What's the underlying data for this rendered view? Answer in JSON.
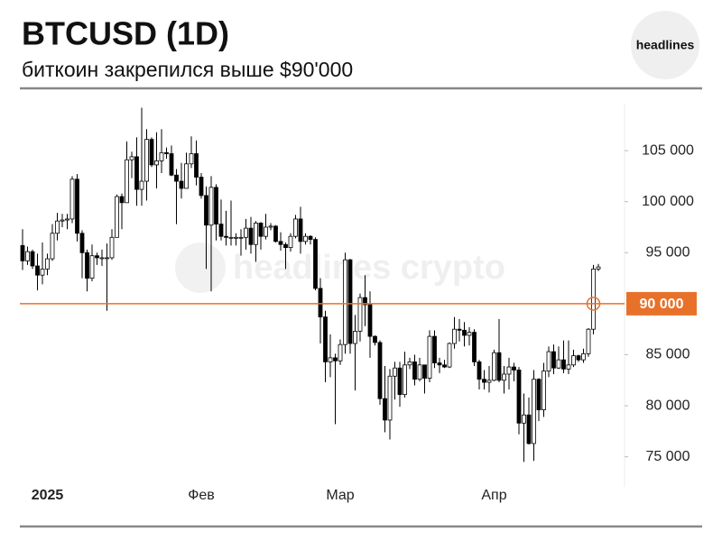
{
  "header": {
    "title": "BTCUSD (1D)",
    "subtitle": "биткоин закрепился выше $90'000",
    "logo": "headlines"
  },
  "watermark": "headlines crypto",
  "chart_data": {
    "type": "candlestick",
    "categories": [
      null,
      null,
      null,
      null,
      null,
      "2025",
      null,
      null,
      null,
      null,
      null,
      null,
      null,
      null,
      null,
      null,
      null,
      null,
      null,
      null,
      null,
      null,
      null,
      null,
      null,
      null,
      null,
      null,
      null,
      null,
      null,
      null,
      null,
      null,
      null,
      null,
      "Фев",
      null,
      null,
      null,
      null,
      null,
      null,
      null,
      null,
      null,
      null,
      null,
      null,
      null,
      null,
      null,
      null,
      null,
      null,
      null,
      null,
      null,
      null,
      null,
      null,
      null,
      null,
      null,
      "Мар",
      null,
      null,
      null,
      null,
      null,
      null,
      null,
      null,
      null,
      null,
      null,
      null,
      null,
      null,
      null,
      null,
      null,
      null,
      null,
      null,
      null,
      null,
      null,
      null,
      null,
      null,
      null,
      null,
      null,
      null,
      "Апр",
      null,
      null,
      null,
      null,
      null,
      null,
      null,
      null,
      null,
      null,
      null,
      null,
      null,
      null,
      null,
      null,
      null,
      null,
      null,
      null,
      null
    ],
    "open": [
      95700,
      94200,
      95100,
      93700,
      92800,
      93400,
      94400,
      96900,
      98100,
      98200,
      98300,
      102200,
      96900,
      95000,
      92500,
      94700,
      94500,
      94500,
      94500,
      96500,
      100500,
      99900,
      104100,
      104400,
      101200,
      102000,
      106100,
      103600,
      104000,
      104800,
      104700,
      102600,
      102000,
      101300,
      103700,
      104700,
      102400,
      100600,
      97700,
      101400,
      97800,
      96600,
      96500,
      96500,
      96500,
      96500,
      97400,
      95800,
      97900,
      96600,
      97500,
      97600,
      96100,
      95800,
      95500,
      96600,
      98300,
      96100,
      96600,
      96300,
      91500,
      88700,
      84300,
      84700,
      84400,
      86000,
      94300,
      86100,
      87300,
      90600,
      89900,
      86800,
      86200,
      80700,
      78600,
      82900,
      83700,
      81100,
      84000,
      84300,
      82600,
      84000,
      82700,
      86800,
      84200,
      84000,
      83800,
      86100,
      87500,
      87400,
      86900,
      87200,
      84300,
      82600,
      82300,
      82500,
      85200,
      82500,
      83100,
      83800,
      83500,
      78300,
      79100,
      76300,
      82600,
      79600,
      83400,
      85300,
      83700,
      84500,
      83600,
      84000,
      84900,
      84500,
      85100,
      87500,
      93400
    ],
    "high": [
      97300,
      95600,
      95300,
      94900,
      96000,
      94900,
      97800,
      98900,
      98800,
      98800,
      102500,
      102700,
      97200,
      95300,
      95800,
      95000,
      95300,
      95900,
      97300,
      100700,
      100800,
      105900,
      104900,
      106300,
      109200,
      107100,
      106300,
      106800,
      107100,
      105300,
      105500,
      103200,
      103800,
      104800,
      106400,
      106000,
      102800,
      101500,
      102500,
      101700,
      100200,
      99100,
      100100,
      96900,
      97300,
      98300,
      98500,
      98100,
      98000,
      98800,
      97900,
      97700,
      97000,
      96000,
      96900,
      98700,
      99500,
      96900,
      96700,
      96500,
      92500,
      89300,
      87000,
      85100,
      86500,
      95000,
      94400,
      88900,
      91000,
      92800,
      91200,
      86900,
      86400,
      83900,
      83600,
      84300,
      84300,
      85300,
      84700,
      85000,
      84700,
      84000,
      87400,
      87400,
      84700,
      84500,
      86200,
      88700,
      88500,
      88200,
      87700,
      87500,
      84500,
      83500,
      83900,
      85500,
      88500,
      83900,
      84700,
      84200,
      83800,
      81200,
      80800,
      83500,
      82700,
      84200,
      85800,
      86000,
      85800,
      86400,
      86400,
      85500,
      85000,
      85600,
      87600,
      93800,
      93900
    ],
    "low": [
      93300,
      93800,
      93400,
      91300,
      91900,
      92800,
      94200,
      96200,
      97500,
      97300,
      97900,
      96100,
      92500,
      91200,
      92200,
      93800,
      93700,
      89300,
      94300,
      96500,
      97300,
      99900,
      102300,
      99600,
      99600,
      100100,
      103400,
      101300,
      102800,
      104200,
      102500,
      97800,
      100300,
      101300,
      103300,
      101600,
      100300,
      93400,
      91200,
      96200,
      96200,
      95700,
      95700,
      95700,
      94700,
      95300,
      94900,
      94100,
      95300,
      96300,
      97200,
      96000,
      95200,
      93400,
      95100,
      96400,
      94900,
      95800,
      95800,
      91300,
      86100,
      82300,
      82800,
      78200,
      84000,
      85100,
      85100,
      81500,
      86300,
      87800,
      84700,
      85900,
      80100,
      77400,
      76700,
      80600,
      79900,
      80800,
      83600,
      82000,
      82400,
      81200,
      82300,
      83700,
      83200,
      83700,
      83700,
      85600,
      86300,
      85800,
      85900,
      83900,
      81600,
      81600,
      81300,
      82400,
      82300,
      81200,
      81600,
      82400,
      77200,
      74500,
      76200,
      74600,
      78500,
      78900,
      82800,
      83100,
      83600,
      83200,
      83100,
      83800,
      84300,
      84200,
      84800,
      87000,
      93200
    ],
    "close": [
      94200,
      95100,
      93700,
      92800,
      93400,
      94400,
      96900,
      98100,
      98200,
      98300,
      102200,
      96900,
      95000,
      92500,
      94700,
      94500,
      94500,
      94500,
      96500,
      100500,
      99900,
      104100,
      104400,
      101200,
      102000,
      106100,
      103600,
      104000,
      104800,
      104700,
      102600,
      102000,
      101300,
      103700,
      104700,
      102400,
      100600,
      97700,
      101400,
      97800,
      96600,
      96500,
      96500,
      96500,
      96500,
      97400,
      95800,
      97900,
      96600,
      97500,
      97600,
      96100,
      95800,
      95500,
      96600,
      98300,
      96100,
      96600,
      96300,
      91500,
      88700,
      84300,
      84700,
      84400,
      86000,
      94300,
      86100,
      87300,
      90600,
      89900,
      86800,
      86200,
      80700,
      78600,
      82900,
      83700,
      81100,
      84000,
      84300,
      82600,
      84000,
      82700,
      86800,
      84200,
      84000,
      83800,
      86100,
      87500,
      87400,
      86900,
      87200,
      84300,
      82600,
      82300,
      82500,
      85200,
      82500,
      83100,
      83800,
      83500,
      78300,
      79100,
      76300,
      82600,
      79600,
      83400,
      85300,
      83700,
      84500,
      83600,
      84000,
      84900,
      84500,
      85100,
      87500,
      93400,
      93600
    ],
    "up_color": "#ffffff",
    "down_color": "#000000",
    "ylim": [
      72500,
      109600
    ],
    "yticks": [
      {
        "value": 75000,
        "label": "75 000"
      },
      {
        "value": 80000,
        "label": "80 000"
      },
      {
        "value": 85000,
        "label": "85 000"
      },
      {
        "value": 95000,
        "label": "95 000"
      },
      {
        "value": 100000,
        "label": "100 000"
      },
      {
        "value": 105000,
        "label": "105 000"
      }
    ],
    "price_line": {
      "value": 90000,
      "label": "90 000",
      "color": "#e8712a"
    }
  }
}
